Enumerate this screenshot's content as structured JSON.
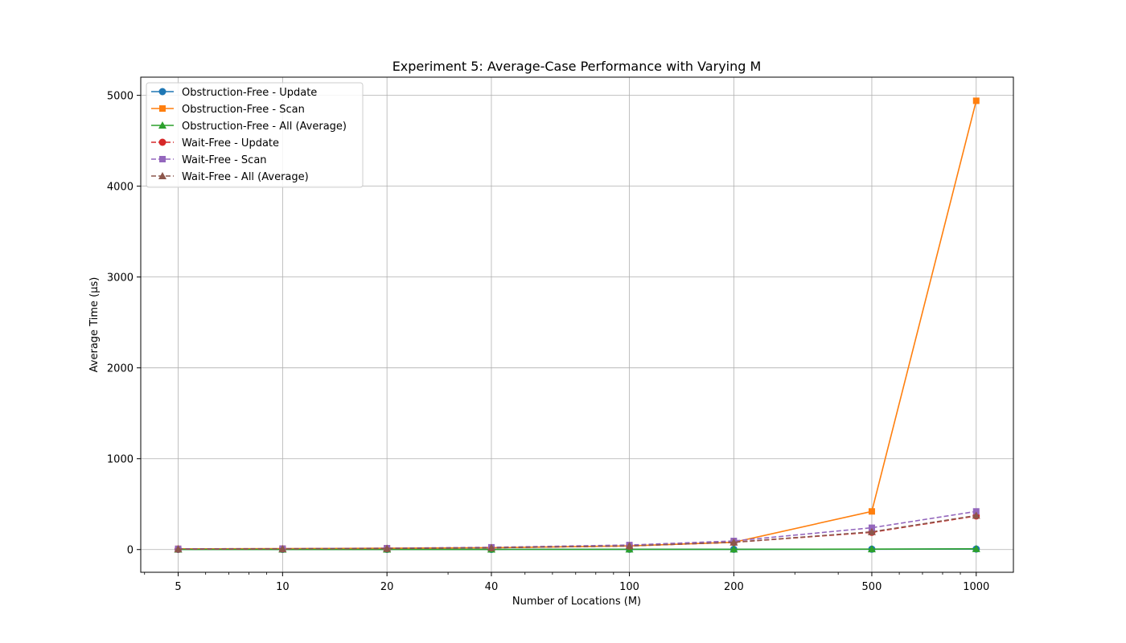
{
  "chart_data": {
    "type": "line",
    "title": "Experiment 5: Average-Case Performance with Varying M",
    "xlabel": "Number of Locations (M)",
    "ylabel": "Average Time (µs)",
    "xscale": "log",
    "x": [
      5,
      10,
      20,
      40,
      100,
      200,
      500,
      1000
    ],
    "x_tick_labels": [
      "5",
      "10",
      "20",
      "40",
      "100",
      "200",
      "500",
      "1000"
    ],
    "xlim": [
      3.9,
      1280
    ],
    "ylim": [
      -250,
      5200
    ],
    "y_ticks": [
      0,
      1000,
      2000,
      3000,
      4000,
      5000
    ],
    "y_tick_labels": [
      "0",
      "1000",
      "2000",
      "3000",
      "4000",
      "5000"
    ],
    "grid": true,
    "legend_position": "upper-left",
    "series": [
      {
        "name": "Obstruction-Free - Update",
        "color": "#1f77b4",
        "marker": "circle",
        "dashed": false,
        "values": [
          2,
          2,
          2,
          2,
          3,
          3,
          4,
          6
        ]
      },
      {
        "name": "Obstruction-Free - Scan",
        "color": "#ff7f0e",
        "marker": "square",
        "dashed": false,
        "values": [
          8,
          10,
          15,
          20,
          40,
          80,
          420,
          4940
        ]
      },
      {
        "name": "Obstruction-Free - All (Average)",
        "color": "#2ca02c",
        "marker": "triangle",
        "dashed": false,
        "values": [
          2,
          2,
          2,
          2,
          3,
          3,
          5,
          8
        ]
      },
      {
        "name": "Wait-Free - Update",
        "color": "#d62728",
        "marker": "circle",
        "dashed": true,
        "values": [
          5,
          8,
          12,
          20,
          40,
          80,
          190,
          370
        ]
      },
      {
        "name": "Wait-Free - Scan",
        "color": "#9467bd",
        "marker": "square",
        "dashed": true,
        "values": [
          8,
          10,
          15,
          25,
          50,
          95,
          240,
          420
        ]
      },
      {
        "name": "Wait-Free - All (Average)",
        "color": "#8c564b",
        "marker": "triangle",
        "dashed": true,
        "values": [
          5,
          8,
          12,
          20,
          40,
          80,
          195,
          375
        ]
      }
    ]
  }
}
